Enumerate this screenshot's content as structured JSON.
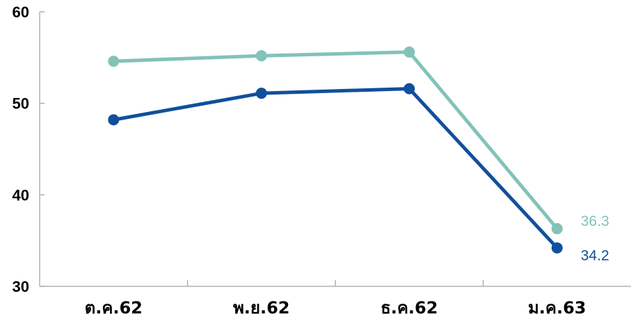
{
  "chart_data": {
    "type": "line",
    "title": "",
    "xlabel": "",
    "ylabel": "",
    "categories": [
      "ต.ค.62",
      "พ.ย.62",
      "ธ.ค.62",
      "ม.ค.63"
    ],
    "ylim": [
      30,
      60
    ],
    "yticks": [
      "30",
      "40",
      "50",
      "60"
    ],
    "grid": false,
    "legend": "none",
    "series": [
      {
        "values": [
          54.6,
          55.2,
          55.6,
          36.3
        ],
        "color": "#82c2b9",
        "end_label": "36.3"
      },
      {
        "values": [
          48.2,
          51.1,
          51.6,
          34.2
        ],
        "color": "#114f9c",
        "end_label": "34.2"
      }
    ]
  }
}
